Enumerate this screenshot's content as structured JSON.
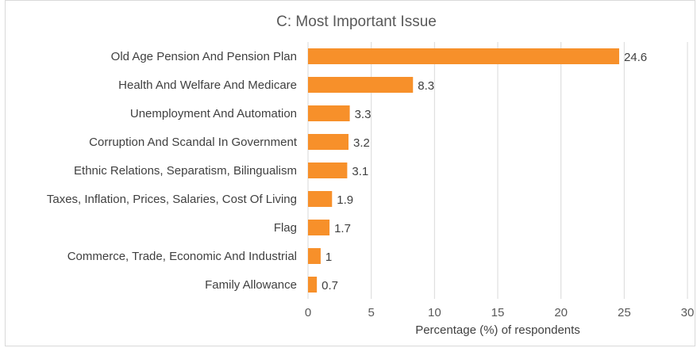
{
  "chart_data": {
    "type": "bar",
    "orientation": "horizontal",
    "title": "C: Most Important Issue",
    "xlabel": "Percentage (%) of respondents",
    "ylabel": "",
    "categories": [
      "Old Age Pension And Pension Plan",
      "Health And Welfare And Medicare",
      "Unemployment And Automation",
      "Corruption And Scandal In Government",
      "Ethnic Relations, Separatism, Bilingualism",
      "Taxes, Inflation, Prices, Salaries, Cost Of Living",
      "Flag",
      "Commerce, Trade, Economic And Industrial",
      "Family Allowance"
    ],
    "values": [
      24.6,
      8.3,
      3.3,
      3.2,
      3.1,
      1.9,
      1.7,
      1,
      0.7
    ],
    "value_labels": [
      "24.6",
      "8.3",
      "3.3",
      "3.2",
      "3.1",
      "1.9",
      "1.7",
      "1",
      "0.7"
    ],
    "xlim": [
      0,
      30
    ],
    "xticks": [
      0,
      5,
      10,
      15,
      20,
      25,
      30
    ],
    "grid": "vertical",
    "legend": "none",
    "bar_color": "#F7902A",
    "grid_color": "#d9d9d9"
  }
}
